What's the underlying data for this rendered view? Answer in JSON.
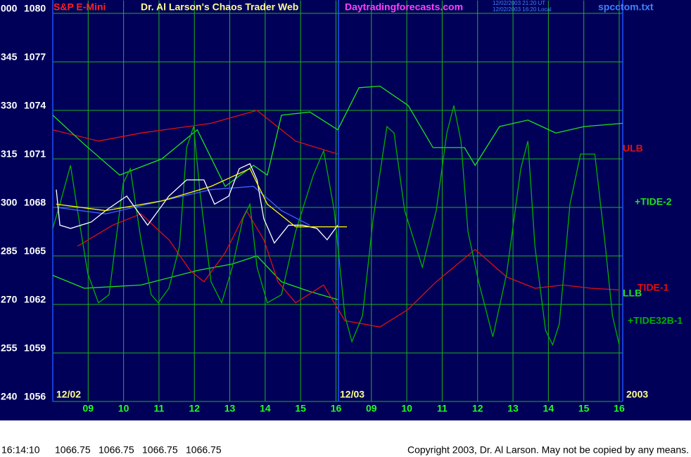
{
  "chart_data": {
    "type": "line",
    "title": "S&P E-Mini",
    "subtitle": "Dr. Al Larson's Chaos Trader Web",
    "site": "Daytradingforecasts.com",
    "timestamps": [
      "12/02/2003 21:20 UT",
      "12/02/2003 16:20 Local"
    ],
    "file": "spcctom.txt",
    "day_labels": [
      "12/02",
      "12/03",
      "2003"
    ],
    "xlim": [
      0,
      16.1
    ],
    "xticks": [
      {
        "value": 1,
        "label": "09"
      },
      {
        "value": 2,
        "label": "10"
      },
      {
        "value": 3,
        "label": "11"
      },
      {
        "value": 4,
        "label": "12"
      },
      {
        "value": 5,
        "label": "13"
      },
      {
        "value": 6,
        "label": "14"
      },
      {
        "value": 7,
        "label": "15"
      },
      {
        "value": 8,
        "label": "16"
      },
      {
        "value": 9,
        "label": "09"
      },
      {
        "value": 10,
        "label": "10"
      },
      {
        "value": 11,
        "label": "11"
      },
      {
        "value": 12,
        "label": "12"
      },
      {
        "value": 13,
        "label": "13"
      },
      {
        "value": 14,
        "label": "14"
      },
      {
        "value": 15,
        "label": "15"
      },
      {
        "value": 16,
        "label": "16"
      }
    ],
    "ylim": [
      1056,
      1080.8
    ],
    "yticks": [
      1080,
      1077,
      1074,
      1071,
      1068,
      1065,
      1062,
      1059,
      1056
    ],
    "y2lim": [
      240,
      364
    ],
    "y2ticks": [
      {
        "value": 360,
        "label": "000"
      },
      345,
      330,
      315,
      300,
      285,
      270,
      255,
      240
    ],
    "grid": true,
    "grid_color": "#20b020",
    "series": [
      {
        "name": "ULB",
        "color": "#e01010",
        "x": [
          0,
          1.29,
          2.49,
          4.47,
          5.77,
          6.86,
          8.05
        ],
        "values": [
          1072.8,
          1072.1,
          1072.6,
          1073.2,
          1074.0,
          1072.1,
          1071.3
        ]
      },
      {
        "name": "LLB",
        "color": "#20e020",
        "x": [
          0,
          0.89,
          2.49,
          4.08,
          5.07,
          5.77,
          6.46,
          7.26,
          8.05
        ],
        "values": [
          1063.8,
          1063.0,
          1063.2,
          1064.1,
          1064.5,
          1065.0,
          1063.4,
          1062.8,
          1062.3
        ]
      },
      {
        "name": "TIDE-1",
        "color": "#e01010",
        "x": [
          0.7,
          1.69,
          2.49,
          3.28,
          3.88,
          4.27,
          4.87,
          5.47,
          5.96,
          6.36,
          6.86,
          7.65,
          8.25,
          9.24,
          10.04,
          10.83,
          11.93,
          12.82,
          13.62,
          14.41,
          15.21,
          16.0
        ],
        "values": [
          1065.6,
          1066.9,
          1067.6,
          1066.0,
          1064.1,
          1063.4,
          1065.2,
          1067.8,
          1066.0,
          1063.4,
          1062.1,
          1063.2,
          1061.0,
          1060.6,
          1061.7,
          1063.4,
          1065.4,
          1063.7,
          1063.0,
          1063.2,
          1063.0,
          1062.9
        ]
      },
      {
        "name": "+TIDE-2",
        "color": "#20e020",
        "x": [
          0,
          0.89,
          1.89,
          3.08,
          4.08,
          4.87,
          5.67,
          6.06,
          6.46,
          7.26,
          8.05,
          8.65,
          9.24,
          10.04,
          10.74,
          11.63,
          11.93,
          12.62,
          13.42,
          14.21,
          15.01,
          16.1
        ],
        "values": [
          1073.7,
          1071.9,
          1070.0,
          1071.0,
          1072.8,
          1069.3,
          1070.6,
          1070.0,
          1073.7,
          1073.9,
          1072.8,
          1075.4,
          1075.5,
          1074.3,
          1071.7,
          1071.7,
          1070.6,
          1073.0,
          1073.4,
          1072.6,
          1073.0,
          1073.2
        ]
      },
      {
        "name": "+TIDE32B-1",
        "color": "#00b000",
        "x": [
          0,
          0.2,
          0.5,
          0.7,
          0.99,
          1.29,
          1.59,
          1.99,
          2.19,
          2.49,
          2.78,
          2.98,
          3.28,
          3.58,
          3.78,
          3.98,
          4.17,
          4.47,
          4.77,
          5.07,
          5.37,
          5.57,
          5.77,
          6.06,
          6.46,
          6.86,
          7.36,
          7.65,
          7.95,
          8.25,
          8.45,
          8.75,
          9.05,
          9.44,
          9.64,
          9.94,
          10.44,
          10.83,
          11.13,
          11.33,
          11.53,
          11.73,
          12.03,
          12.43,
          12.82,
          13.22,
          13.42,
          13.62,
          13.92,
          14.12,
          14.31,
          14.61,
          14.91,
          15.31,
          15.61,
          15.81,
          16.0
        ],
        "values": [
          1066.7,
          1068.2,
          1070.6,
          1067.8,
          1063.9,
          1062.1,
          1062.6,
          1069.5,
          1070.4,
          1066.0,
          1062.6,
          1062.1,
          1063.0,
          1065.6,
          1071.7,
          1073.0,
          1068.7,
          1063.4,
          1062.1,
          1064.3,
          1067.3,
          1068.2,
          1064.3,
          1062.1,
          1062.6,
          1066.5,
          1070.0,
          1071.5,
          1067.8,
          1061.3,
          1059.7,
          1061.3,
          1067.3,
          1073.0,
          1072.6,
          1067.8,
          1064.3,
          1067.8,
          1072.6,
          1074.3,
          1072.1,
          1066.5,
          1063.4,
          1060.0,
          1063.9,
          1070.4,
          1072.1,
          1065.6,
          1060.4,
          1059.5,
          1060.8,
          1068.2,
          1071.3,
          1071.3,
          1065.6,
          1061.3,
          1059.5
        ]
      },
      {
        "color": "#4060ff",
        "x": [
          0.1,
          1.49,
          3.08,
          4.47,
          5.67,
          6.46,
          7.26
        ],
        "values": [
          1068.0,
          1067.6,
          1068.4,
          1069.1,
          1069.3,
          1067.8,
          1066.9
        ]
      },
      {
        "color": "#ffffff",
        "x": [
          0.1,
          0.2,
          0.5,
          1.09,
          1.49,
          2.09,
          2.68,
          3.28,
          3.78,
          4.27,
          4.57,
          4.97,
          5.27,
          5.57,
          5.77,
          5.96,
          6.26,
          6.66,
          7.06,
          7.46,
          7.75,
          8.05
        ],
        "values": [
          1069.1,
          1066.9,
          1066.7,
          1067.1,
          1067.8,
          1068.7,
          1066.9,
          1068.7,
          1069.7,
          1069.7,
          1068.2,
          1068.7,
          1070.4,
          1070.7,
          1069.7,
          1067.3,
          1065.8,
          1066.9,
          1066.9,
          1066.7,
          1066.0,
          1066.9
        ]
      },
      {
        "color": "#ffff00",
        "x": [
          0.1,
          1.49,
          3.08,
          4.47,
          5.57,
          6.06,
          6.86,
          8.31
        ],
        "values": [
          1068.2,
          1067.8,
          1068.4,
          1069.3,
          1070.4,
          1068.2,
          1066.8,
          1066.8
        ]
      }
    ],
    "footer": {
      "time": "16:14:10",
      "quotes": [
        1066.75,
        1066.75,
        1066.75,
        1066.75
      ],
      "copyright": "Copyright 2003, Dr. Al Larson. May not be copied by any means."
    }
  }
}
